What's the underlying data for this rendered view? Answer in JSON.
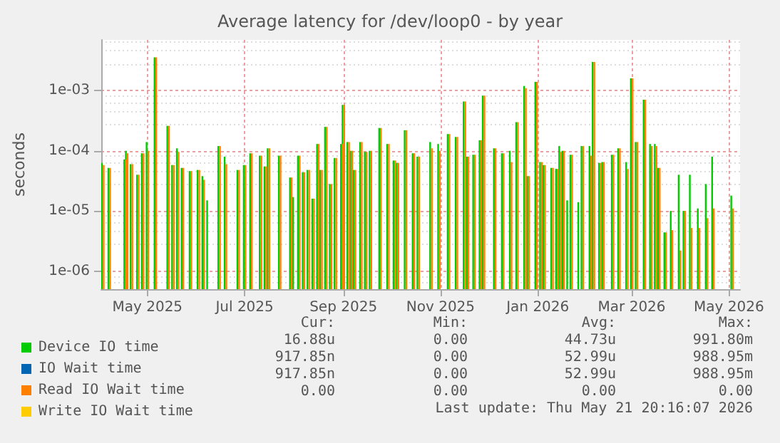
{
  "chart_data": {
    "type": "bar",
    "title": "Average latency for /dev/loop0 - by year",
    "ylabel": "seconds",
    "log": "y",
    "grid": true,
    "legend": "bottom left",
    "xlim": [
      "2025-04-02",
      "2026-05-08"
    ],
    "xticks": [
      {
        "value": "2025-05-01",
        "label": "May 2025"
      },
      {
        "value": "2025-07-01",
        "label": "Jul 2025"
      },
      {
        "value": "2025-09-01",
        "label": "Sep 2025"
      },
      {
        "value": "2025-11-01",
        "label": "Nov 2025"
      },
      {
        "value": "2026-01-01",
        "label": "Jan 2026"
      },
      {
        "value": "2026-03-01",
        "label": "Mar 2026"
      },
      {
        "value": "2026-05-01",
        "label": "May 2026"
      }
    ],
    "ylim": [
      5e-07,
      0.007
    ],
    "yticks": [
      {
        "value": 1e-06,
        "label": "1e-06"
      },
      {
        "value": 1e-05,
        "label": "1e-05"
      },
      {
        "value": 0.0001,
        "label": "1e-04"
      },
      {
        "value": 0.001,
        "label": "1e-03"
      }
    ],
    "x": [
      "2025-04-03",
      "2025-04-07",
      "2025-04-17",
      "2025-04-18",
      "2025-04-21",
      "2025-04-25",
      "2025-04-28",
      "2025-05-01",
      "2025-05-06",
      "2025-05-14",
      "2025-05-17",
      "2025-05-20",
      "2025-05-23",
      "2025-05-28",
      "2025-06-02",
      "2025-06-05",
      "2025-06-08",
      "2025-06-15",
      "2025-06-19",
      "2025-06-27",
      "2025-07-01",
      "2025-07-05",
      "2025-07-11",
      "2025-07-14",
      "2025-07-16",
      "2025-07-23",
      "2025-07-30",
      "2025-08-01",
      "2025-08-04",
      "2025-08-07",
      "2025-08-10",
      "2025-08-13",
      "2025-08-16",
      "2025-08-18",
      "2025-08-21",
      "2025-08-24",
      "2025-08-27",
      "2025-08-31",
      "2025-09-01",
      "2025-09-04",
      "2025-09-06",
      "2025-09-08",
      "2025-09-12",
      "2025-09-15",
      "2025-09-18",
      "2025-09-24",
      "2025-09-29",
      "2025-10-03",
      "2025-10-05",
      "2025-10-10",
      "2025-10-15",
      "2025-10-18",
      "2025-10-26",
      "2025-10-31",
      "2025-11-06",
      "2025-11-11",
      "2025-11-16",
      "2025-11-18",
      "2025-11-22",
      "2025-11-26",
      "2025-11-28",
      "2025-12-05",
      "2025-12-10",
      "2025-12-15",
      "2025-12-19",
      "2025-12-24",
      "2025-12-26",
      "2025-12-31",
      "2026-01-03",
      "2026-01-05",
      "2026-01-10",
      "2026-01-13",
      "2026-01-15",
      "2026-01-17",
      "2026-01-20",
      "2026-01-22",
      "2026-01-27",
      "2026-01-29",
      "2026-02-03",
      "2026-02-05",
      "2026-02-09",
      "2026-02-11",
      "2026-02-17",
      "2026-02-21",
      "2026-02-26",
      "2026-03-01",
      "2026-03-04",
      "2026-03-09",
      "2026-03-13",
      "2026-03-16",
      "2026-03-18",
      "2026-03-22",
      "2026-03-26",
      "2026-03-31",
      "2026-04-03",
      "2026-04-07",
      "2026-04-12",
      "2026-04-17",
      "2026-04-21",
      "2026-05-03"
    ],
    "series": [
      {
        "name": "Device IO time",
        "color": "#00cc00",
        "values": [
          6.3e-05,
          5.2e-05,
          7.2e-05,
          0.0001,
          6e-05,
          4e-05,
          9.1e-05,
          0.00014,
          0.0036,
          0.00026,
          5.8e-05,
          0.00011,
          5.2e-05,
          4.6e-05,
          4.8e-05,
          3.8e-05,
          1.5e-05,
          0.00012,
          8e-05,
          4.8e-05,
          5.8e-05,
          9.1e-05,
          8.3e-05,
          5.5e-05,
          0.00011,
          8.3e-05,
          3.6e-05,
          1.7e-05,
          8.3e-05,
          4.4e-05,
          4.8e-05,
          1.6e-05,
          0.00013,
          4.8e-05,
          0.00025,
          2.8e-05,
          7.6e-05,
          0.00013,
          0.00058,
          0.00014,
          0.0001,
          4.8e-05,
          0.00014,
          9.6e-05,
          0.0001,
          0.00024,
          0.00013,
          6.9e-05,
          6.3e-05,
          0.00022,
          9.1e-05,
          8e-05,
          0.00014,
          0.00013,
          0.00019,
          0.00017,
          0.00066,
          8e-05,
          8.6e-05,
          0.00015,
          0.00083,
          0.00011,
          9.1e-05,
          0.0001,
          0.0003,
          0.0012,
          3.8e-05,
          0.0014,
          6.5e-05,
          5.8e-05,
          5.2e-05,
          5e-05,
          0.00012,
          0.0001,
          1.5e-05,
          8.6e-05,
          1.4e-05,
          0.00012,
          0.00012,
          0.003,
          6.3e-05,
          6.5e-05,
          8.6e-05,
          0.00011,
          6.5e-05,
          0.0016,
          0.00014,
          0.00071,
          0.00013,
          0.00013,
          5.2e-05,
          4.4e-06,
          1e-05,
          4e-05,
          1e-05,
          4e-05,
          1.1e-05,
          2.8e-05,
          8e-05,
          1.8e-05
        ]
      },
      {
        "name": "IO Wait time",
        "color": "#0066b3",
        "values": [
          null,
          null,
          null,
          null,
          null,
          null,
          null,
          null,
          null,
          null,
          null,
          null,
          null,
          null,
          null,
          null,
          null,
          null,
          null,
          null,
          null,
          null,
          null,
          null,
          null,
          null,
          null,
          null,
          null,
          null,
          null,
          null,
          null,
          null,
          null,
          null,
          null,
          null,
          null,
          null,
          null,
          null,
          null,
          null,
          null,
          null,
          null,
          null,
          null,
          null,
          null,
          null,
          null,
          null,
          null,
          null,
          null,
          null,
          null,
          null,
          null,
          null,
          null,
          null,
          null,
          null,
          null,
          null,
          null,
          null,
          null,
          null,
          null,
          null,
          null,
          null,
          null,
          null,
          null,
          null,
          null,
          null,
          null,
          null,
          null,
          null,
          null,
          null,
          null,
          null,
          null,
          null,
          null,
          null,
          null,
          null,
          null,
          null,
          null,
          null
        ]
      },
      {
        "name": "Read IO Wait time",
        "color": "#ff8000",
        "values": [
          5.8e-05,
          5.2e-05,
          7.2e-05,
          9.1e-05,
          6e-05,
          4e-05,
          9.1e-05,
          0.0001,
          0.0036,
          0.00026,
          5.8e-05,
          9.6e-05,
          5.2e-05,
          4.6e-05,
          4.8e-05,
          3.3e-05,
          null,
          0.00012,
          6e-05,
          4.8e-05,
          5.8e-05,
          9.1e-05,
          8.3e-05,
          5.5e-05,
          0.00011,
          8.3e-05,
          3.6e-05,
          null,
          8.3e-05,
          4.4e-05,
          4.8e-05,
          1.6e-05,
          0.00013,
          4.8e-05,
          0.00025,
          2.8e-05,
          7.6e-05,
          0.00013,
          0.00058,
          0.00014,
          0.0001,
          4.8e-05,
          0.00014,
          9.6e-05,
          0.0001,
          0.00024,
          0.00013,
          6.9e-05,
          6.3e-05,
          0.00022,
          9.1e-05,
          8e-05,
          0.00011,
          0.0001,
          0.00019,
          0.00017,
          0.00066,
          8e-05,
          8.6e-05,
          0.00015,
          0.00083,
          0.00011,
          9.1e-05,
          6.5e-05,
          0.0003,
          0.0011,
          3.8e-05,
          0.0014,
          6.5e-05,
          5.8e-05,
          5.2e-05,
          5e-05,
          9.6e-05,
          0.0001,
          null,
          8.6e-05,
          null,
          0.00012,
          8.3e-05,
          0.003,
          6.3e-05,
          6.5e-05,
          8.6e-05,
          0.00011,
          5e-05,
          0.0016,
          0.00014,
          0.00071,
          0.00012,
          0.00012,
          5.2e-05,
          4.4e-06,
          4.8e-06,
          2.2e-06,
          1e-05,
          5.2e-06,
          5.2e-06,
          7.6e-06,
          1.1e-05,
          1.1e-05
        ]
      },
      {
        "name": "Write IO Wait time",
        "color": "#ffcc00",
        "values": [
          null,
          null,
          null,
          null,
          null,
          null,
          null,
          null,
          null,
          null,
          null,
          null,
          null,
          null,
          null,
          null,
          null,
          null,
          null,
          null,
          null,
          null,
          null,
          null,
          null,
          null,
          null,
          null,
          null,
          null,
          null,
          null,
          null,
          null,
          null,
          null,
          null,
          null,
          null,
          null,
          null,
          null,
          null,
          null,
          null,
          null,
          null,
          null,
          null,
          null,
          null,
          null,
          null,
          null,
          null,
          null,
          null,
          null,
          null,
          null,
          null,
          null,
          null,
          null,
          null,
          null,
          null,
          null,
          null,
          null,
          null,
          null,
          null,
          null,
          null,
          null,
          null,
          null,
          null,
          null,
          null,
          null,
          null,
          null,
          null,
          null,
          null,
          null,
          null,
          null,
          null,
          null,
          null,
          null,
          null,
          null,
          null,
          null,
          null,
          null
        ]
      }
    ],
    "annotations": [
      "Cur:",
      "Min:",
      "Avg:",
      "Max:",
      "16.88u",
      "0.00",
      "44.73u",
      "991.80m",
      "917.85n",
      "0.00",
      "52.99u",
      "988.95m",
      "917.85n",
      "0.00",
      "52.99u",
      "988.95m",
      "0.00",
      "0.00",
      "0.00",
      "0.00",
      "Last update: Thu May 21 20:16:07 2026"
    ]
  }
}
